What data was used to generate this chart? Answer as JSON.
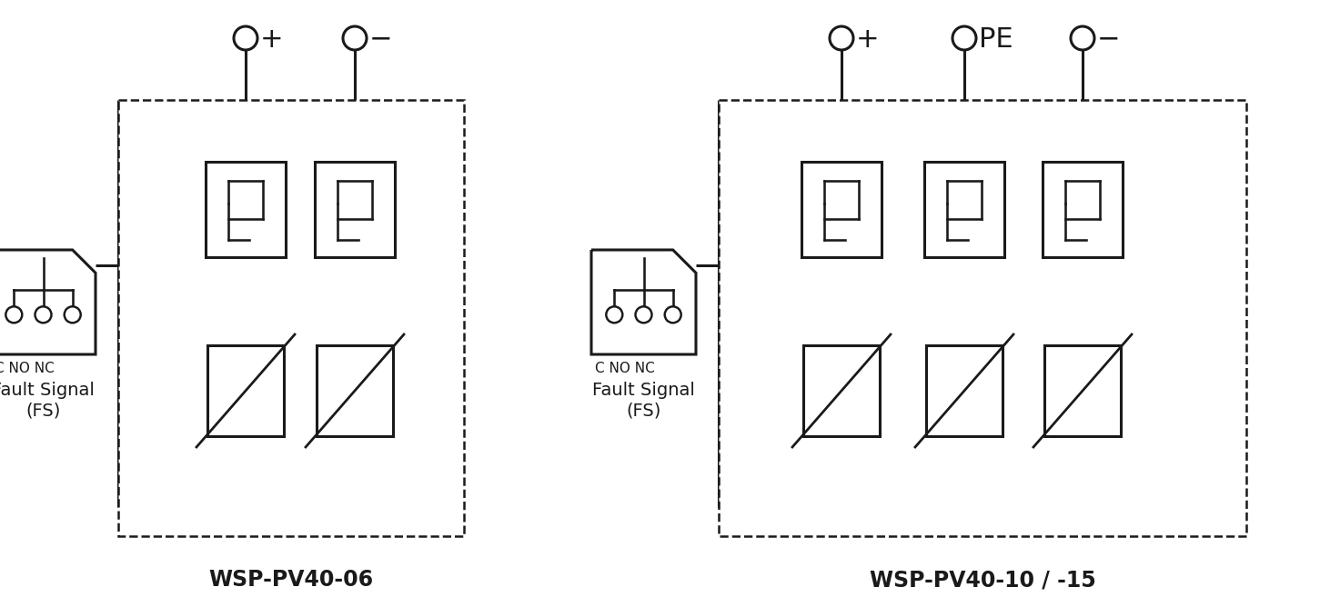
{
  "line_color": "#1a1a1a",
  "lw": 2.2,
  "dashed_lw": 1.8,
  "label1": "WSP-PV40-06",
  "label2": "WSP-PV40-10 / -15",
  "fault_signal_line1": "Fault Signal",
  "fault_signal_line2": "(FS)",
  "cnc_label": "C NO NC",
  "plus_label": "+",
  "minus_label": "−",
  "pe_label": "PE"
}
